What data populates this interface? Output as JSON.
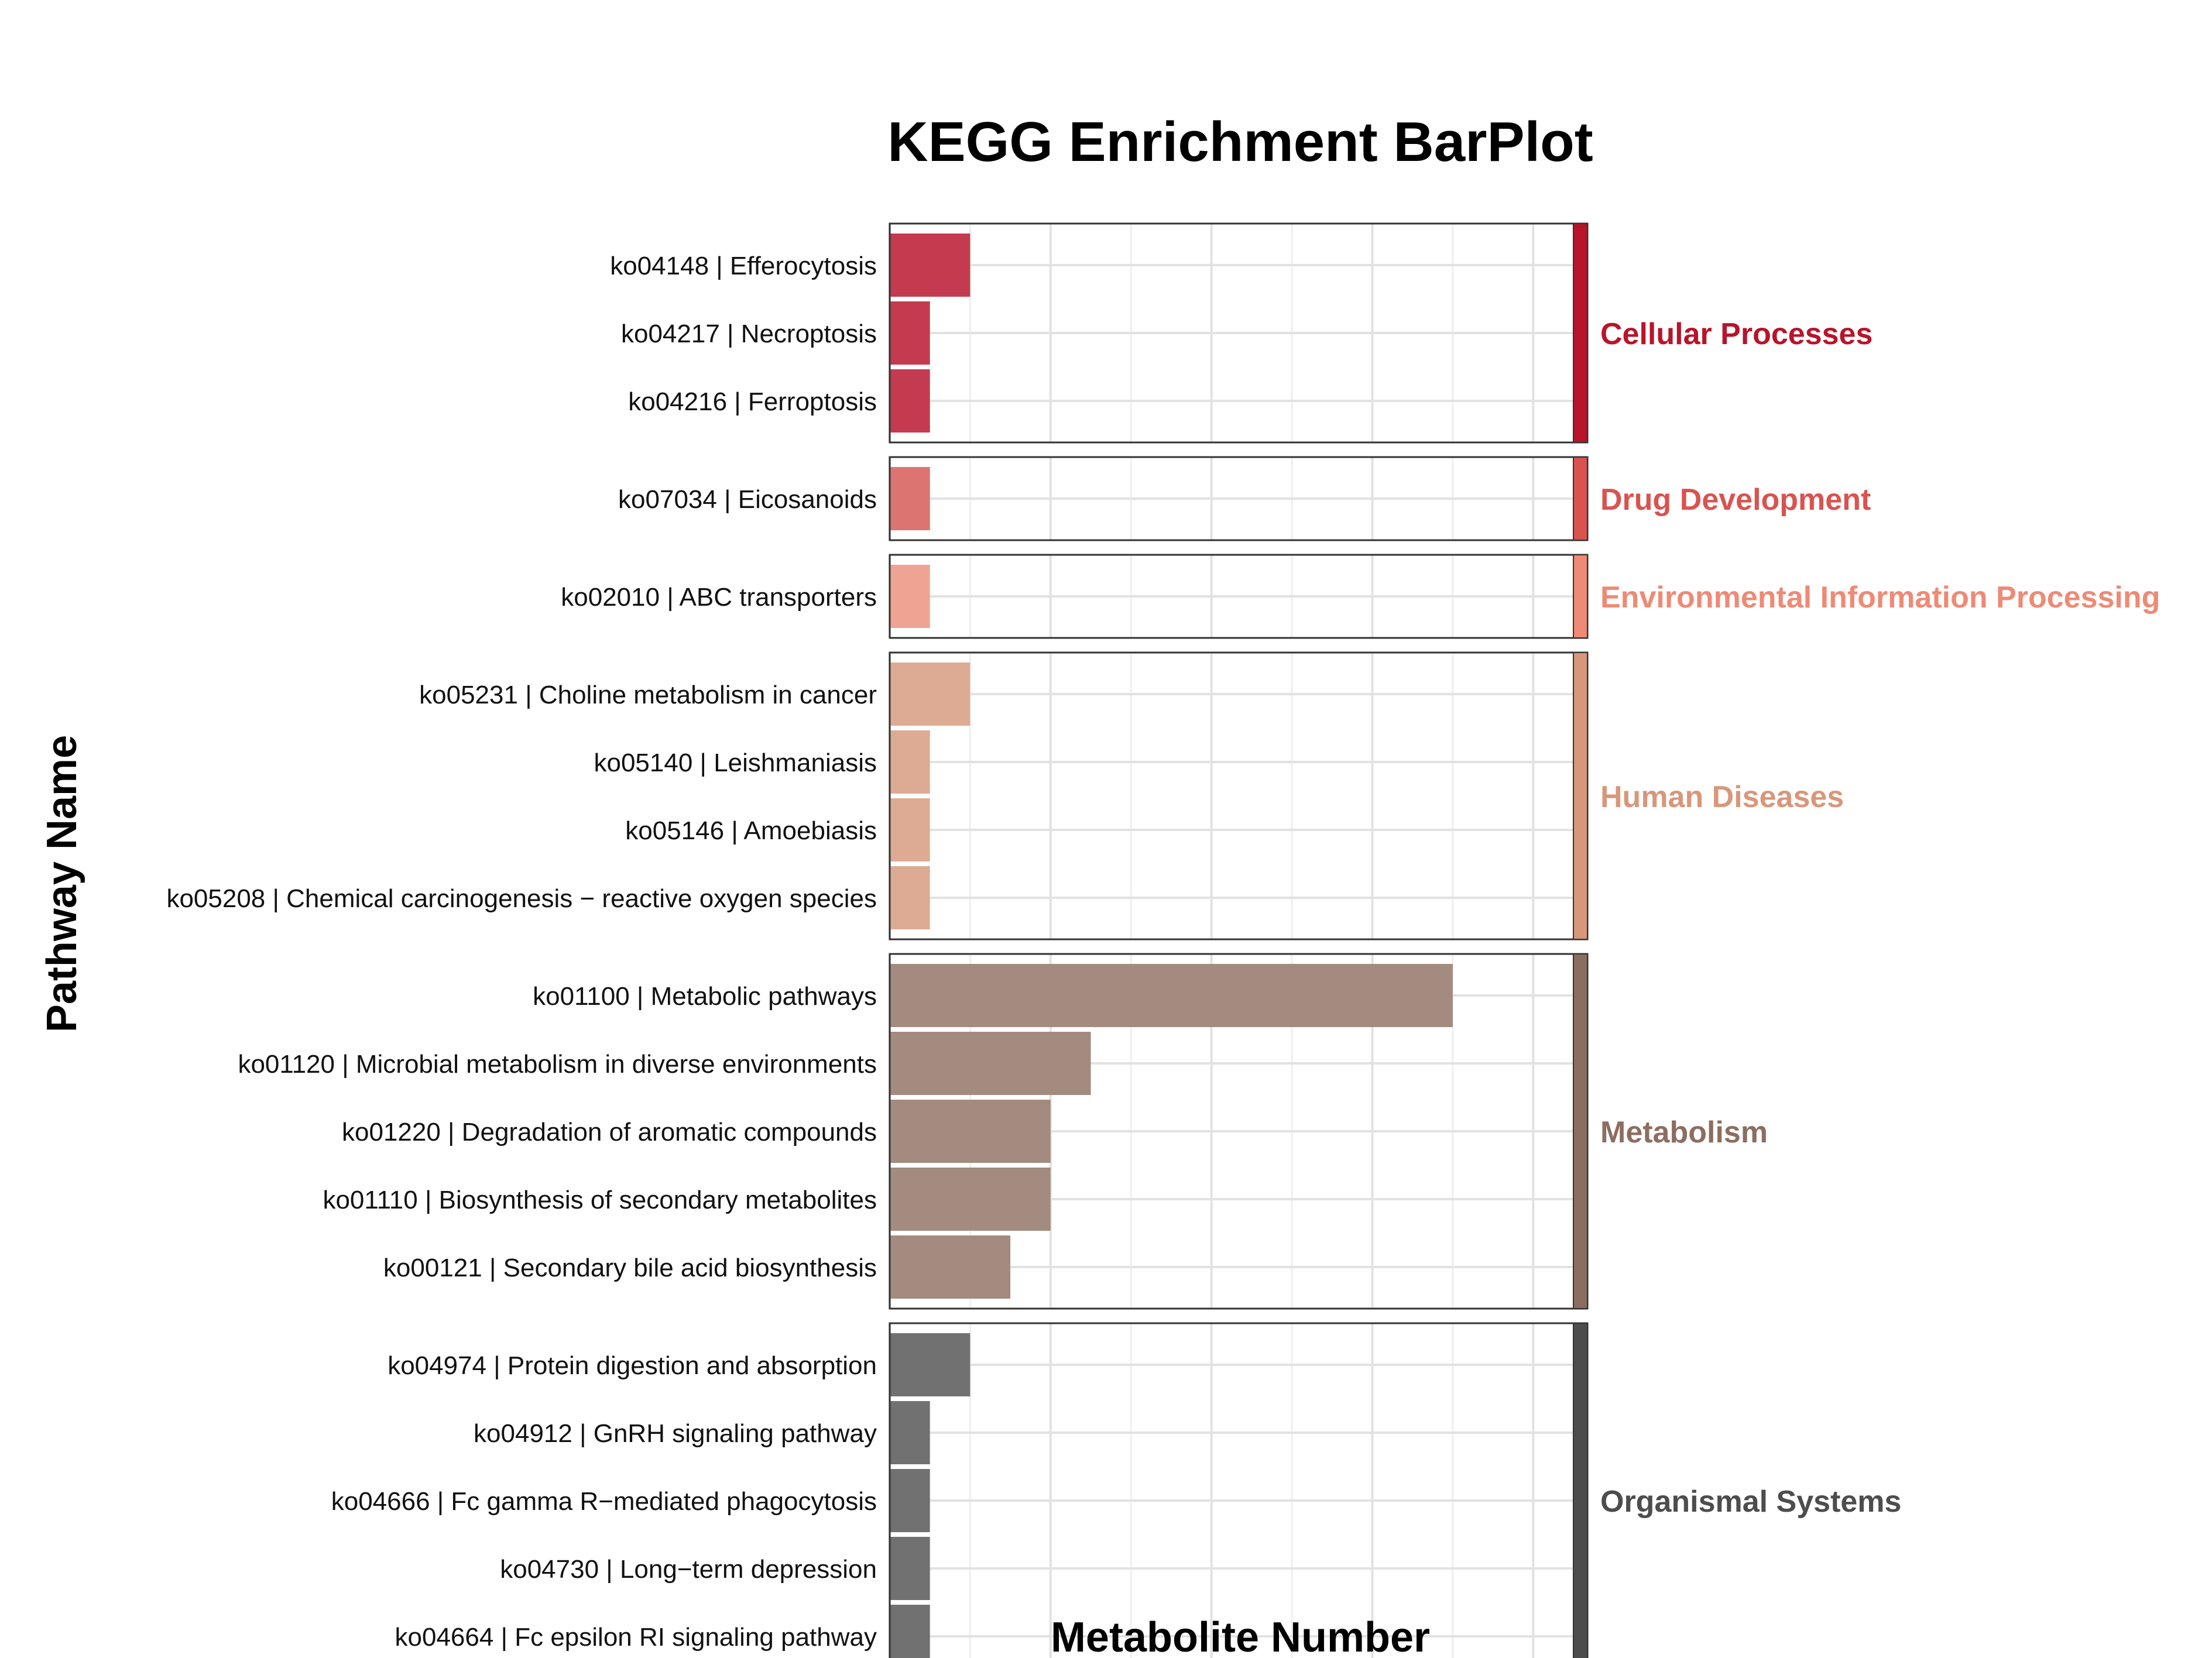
{
  "chart_data": {
    "type": "bar",
    "orientation": "horizontal",
    "title": "KEGG Enrichment BarPlot",
    "xlabel": "Metabolite Number",
    "ylabel": "Pathway Name",
    "xlim": [
      0,
      17
    ],
    "xticks": [
      0,
      4,
      8,
      12,
      16
    ],
    "grid": true,
    "facet_strip_position": "right",
    "groups": [
      {
        "name": "Cellular Processes",
        "color": "#B8142B",
        "bar_color": "#C43B4F",
        "pathways": [
          {
            "label": "ko04148 | Efferocytosis",
            "value": 2
          },
          {
            "label": "ko04217 | Necroptosis",
            "value": 1
          },
          {
            "label": "ko04216 | Ferroptosis",
            "value": 1
          }
        ]
      },
      {
        "name": "Drug Development",
        "color": "#D9534F",
        "bar_color": "#DC7472",
        "pathways": [
          {
            "label": "ko07034 | Eicosanoids",
            "value": 1
          }
        ]
      },
      {
        "name": "Environmental Information Processing",
        "color": "#EE8A75",
        "bar_color": "#EFA392",
        "pathways": [
          {
            "label": "ko02010 | ABC transporters",
            "value": 1
          }
        ]
      },
      {
        "name": "Human Diseases",
        "color": "#D8977A",
        "bar_color": "#DDAB93",
        "pathways": [
          {
            "label": "ko05231 | Choline metabolism in cancer",
            "value": 2
          },
          {
            "label": "ko05140 | Leishmaniasis",
            "value": 1
          },
          {
            "label": "ko05146 | Amoebiasis",
            "value": 1
          },
          {
            "label": "ko05208 | Chemical carcinogenesis − reactive oxygen species",
            "value": 1
          }
        ]
      },
      {
        "name": "Metabolism",
        "color": "#8C6E60",
        "bar_color": "#A38B7F",
        "pathways": [
          {
            "label": "ko01100 | Metabolic pathways",
            "value": 14
          },
          {
            "label": "ko01120 | Microbial metabolism in diverse environments",
            "value": 5
          },
          {
            "label": "ko01220 | Degradation of aromatic compounds",
            "value": 4
          },
          {
            "label": "ko01110 | Biosynthesis of secondary metabolites",
            "value": 4
          },
          {
            "label": "ko00121 | Secondary bile acid biosynthesis",
            "value": 3
          }
        ]
      },
      {
        "name": "Organismal Systems",
        "color": "#4D4D4D",
        "bar_color": "#717171",
        "pathways": [
          {
            "label": "ko04974 | Protein digestion and absorption",
            "value": 2
          },
          {
            "label": "ko04912 | GnRH signaling pathway",
            "value": 1
          },
          {
            "label": "ko04666 | Fc gamma R−mediated phagocytosis",
            "value": 1
          },
          {
            "label": "ko04730 | Long−term depression",
            "value": 1
          },
          {
            "label": "ko04664 | Fc epsilon RI signaling pathway",
            "value": 1
          }
        ]
      }
    ]
  }
}
